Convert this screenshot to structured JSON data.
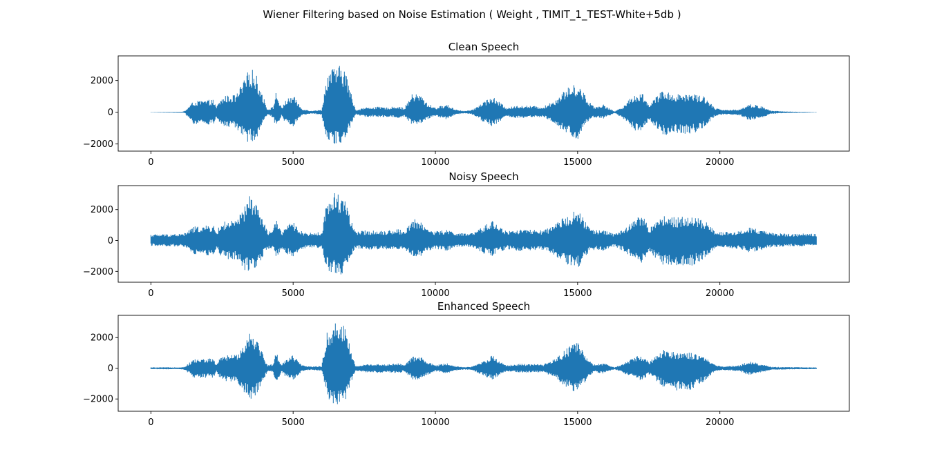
{
  "figure": {
    "suptitle": "Wiener Filtering based on Noise Estimation ( Weight , TIMIT_1_TEST-White+5db )"
  },
  "chart_data": [
    {
      "type": "line",
      "title": "Clean Speech",
      "xlabel": "",
      "ylabel": "",
      "xlim": [
        -1150,
        24550
      ],
      "ylim": [
        -2450,
        3550
      ],
      "xticks": [
        0,
        5000,
        10000,
        15000,
        20000
      ],
      "xtick_labels": [
        "0",
        "5000",
        "10000",
        "15000",
        "20000"
      ],
      "yticks": [
        -2000,
        0,
        2000
      ],
      "ytick_labels": [
        "−2000",
        "0",
        "2000"
      ],
      "grid": false,
      "color": "#1f77b4",
      "n_samples": 23400,
      "envelope": {
        "x": [
          0,
          1100,
          1200,
          1500,
          2200,
          2300,
          2400,
          2600,
          3000,
          3300,
          3500,
          3700,
          4100,
          4300,
          4400,
          4600,
          4700,
          5000,
          5300,
          5600,
          6000,
          6200,
          6500,
          6800,
          7100,
          7200,
          7500,
          8000,
          8300,
          8700,
          8900,
          9200,
          9500,
          9700,
          10000,
          10400,
          10700,
          11000,
          11300,
          11700,
          12000,
          12500,
          13000,
          13800,
          14200,
          14600,
          15000,
          15400,
          15600,
          15900,
          16300,
          16600,
          17000,
          17300,
          17500,
          18000,
          18500,
          19000,
          19500,
          19800,
          20100,
          20700,
          21000,
          21200,
          21500,
          21800,
          22300,
          22800,
          23400
        ],
        "max": [
          10,
          30,
          100,
          700,
          800,
          300,
          700,
          1050,
          1100,
          2100,
          2950,
          2400,
          200,
          350,
          1300,
          250,
          700,
          1100,
          250,
          100,
          150,
          2500,
          2950,
          2900,
          800,
          150,
          300,
          350,
          300,
          400,
          250,
          1200,
          1100,
          600,
          300,
          500,
          200,
          80,
          150,
          700,
          1000,
          300,
          450,
          350,
          800,
          1500,
          1850,
          700,
          350,
          500,
          50,
          400,
          1150,
          1200,
          500,
          1400,
          1150,
          1250,
          1000,
          300,
          150,
          200,
          500,
          500,
          350,
          100,
          50,
          30,
          10
        ],
        "min": [
          -10,
          -30,
          -80,
          -750,
          -800,
          -300,
          -700,
          -950,
          -1000,
          -1850,
          -1900,
          -1700,
          -150,
          -350,
          -1000,
          -200,
          -600,
          -900,
          -200,
          -100,
          -150,
          -1850,
          -2100,
          -1950,
          -500,
          -150,
          -300,
          -300,
          -300,
          -400,
          -250,
          -850,
          -750,
          -450,
          -250,
          -450,
          -150,
          -80,
          -150,
          -650,
          -900,
          -300,
          -400,
          -300,
          -800,
          -1400,
          -1750,
          -500,
          -350,
          -450,
          -50,
          -400,
          -1200,
          -1100,
          -500,
          -1450,
          -1350,
          -1400,
          -900,
          -300,
          -150,
          -200,
          -500,
          -500,
          -350,
          -100,
          -50,
          -30,
          -10
        ]
      }
    },
    {
      "type": "line",
      "title": "Noisy Speech",
      "xlabel": "",
      "ylabel": "",
      "xlim": [
        -1150,
        24550
      ],
      "ylim": [
        -2700,
        3550
      ],
      "xticks": [
        0,
        5000,
        10000,
        15000,
        20000
      ],
      "xtick_labels": [
        "0",
        "5000",
        "10000",
        "15000",
        "20000"
      ],
      "yticks": [
        -2000,
        0,
        2000
      ],
      "ytick_labels": [
        "−2000",
        "0",
        "2000"
      ],
      "grid": false,
      "color": "#1f77b4",
      "n_samples": 23400,
      "envelope": {
        "x": [
          0,
          1100,
          1200,
          1500,
          2200,
          2300,
          2400,
          2600,
          3000,
          3300,
          3500,
          3700,
          4100,
          4300,
          4400,
          4600,
          4700,
          5000,
          5300,
          5600,
          6000,
          6200,
          6500,
          6800,
          7100,
          7200,
          7500,
          8000,
          8300,
          8700,
          8900,
          9200,
          9500,
          9700,
          10000,
          10400,
          10700,
          11000,
          11300,
          11700,
          12000,
          12500,
          13000,
          13800,
          14200,
          14600,
          15000,
          15400,
          15600,
          15900,
          16300,
          16600,
          17000,
          17300,
          17500,
          18000,
          18500,
          19000,
          19500,
          19800,
          20100,
          20700,
          21000,
          21200,
          21500,
          21800,
          22300,
          22800,
          23400
        ],
        "max": [
          400,
          450,
          500,
          900,
          1000,
          550,
          900,
          1250,
          1300,
          2200,
          3100,
          2500,
          600,
          700,
          1400,
          550,
          900,
          1200,
          600,
          500,
          550,
          2700,
          3200,
          3050,
          1000,
          550,
          650,
          650,
          650,
          750,
          600,
          1400,
          1300,
          800,
          600,
          700,
          550,
          450,
          500,
          900,
          1350,
          600,
          750,
          650,
          1000,
          1700,
          2000,
          900,
          650,
          700,
          450,
          700,
          1400,
          1700,
          800,
          1600,
          1500,
          1600,
          1300,
          650,
          550,
          600,
          850,
          800,
          650,
          500,
          450,
          450,
          450
        ],
        "min": [
          -350,
          -400,
          -450,
          -900,
          -1000,
          -500,
          -900,
          -1200,
          -1250,
          -1950,
          -2000,
          -1850,
          -550,
          -650,
          -1150,
          -500,
          -800,
          -1100,
          -550,
          -450,
          -500,
          -2000,
          -2350,
          -2100,
          -800,
          -500,
          -600,
          -600,
          -600,
          -700,
          -550,
          -1050,
          -1000,
          -700,
          -550,
          -650,
          -500,
          -400,
          -450,
          -850,
          -1000,
          -550,
          -700,
          -600,
          -1000,
          -1550,
          -1800,
          -750,
          -600,
          -650,
          -400,
          -700,
          -1300,
          -1500,
          -750,
          -1600,
          -1700,
          -1650,
          -1150,
          -600,
          -500,
          -550,
          -750,
          -750,
          -600,
          -450,
          -400,
          -400,
          -400
        ]
      }
    },
    {
      "type": "line",
      "title": "Enhanced Speech",
      "xlabel": "",
      "ylabel": "",
      "xlim": [
        -1150,
        24550
      ],
      "ylim": [
        -2800,
        3450
      ],
      "xticks": [
        0,
        5000,
        10000,
        15000,
        20000
      ],
      "xtick_labels": [
        "0",
        "5000",
        "10000",
        "15000",
        "20000"
      ],
      "yticks": [
        -2000,
        0,
        2000
      ],
      "ytick_labels": [
        "−2000",
        "0",
        "2000"
      ],
      "grid": false,
      "color": "#1f77b4",
      "n_samples": 23400,
      "envelope": {
        "x": [
          0,
          1100,
          1200,
          1500,
          2200,
          2300,
          2400,
          2600,
          3000,
          3300,
          3500,
          3700,
          4100,
          4300,
          4400,
          4600,
          4700,
          5000,
          5300,
          5600,
          6000,
          6200,
          6500,
          6800,
          7100,
          7200,
          7500,
          8000,
          8300,
          8700,
          8900,
          9200,
          9500,
          9700,
          10000,
          10400,
          10700,
          11000,
          11300,
          11700,
          12000,
          12500,
          13000,
          13800,
          14200,
          14600,
          15000,
          15400,
          15600,
          15900,
          16300,
          16600,
          17000,
          17300,
          17500,
          18000,
          18500,
          19000,
          19500,
          19800,
          20100,
          20700,
          21000,
          21200,
          21500,
          21800,
          22300,
          22800,
          23400
        ],
        "max": [
          60,
          70,
          120,
          600,
          650,
          250,
          600,
          850,
          900,
          1700,
          2600,
          2100,
          200,
          300,
          1100,
          200,
          550,
          900,
          200,
          120,
          150,
          2400,
          3050,
          3000,
          700,
          150,
          250,
          300,
          250,
          350,
          200,
          800,
          750,
          450,
          200,
          350,
          150,
          80,
          120,
          500,
          850,
          200,
          300,
          250,
          600,
          1300,
          1700,
          500,
          250,
          350,
          60,
          300,
          750,
          900,
          400,
          1250,
          1100,
          1000,
          700,
          250,
          120,
          200,
          450,
          400,
          250,
          100,
          80,
          70,
          60
        ],
        "min": [
          -60,
          -70,
          -120,
          -600,
          -650,
          -250,
          -600,
          -850,
          -900,
          -1650,
          -2000,
          -1800,
          -200,
          -300,
          -1000,
          -200,
          -500,
          -850,
          -200,
          -120,
          -150,
          -1900,
          -2550,
          -2300,
          -650,
          -150,
          -250,
          -300,
          -250,
          -350,
          -200,
          -750,
          -700,
          -450,
          -200,
          -350,
          -150,
          -80,
          -120,
          -500,
          -750,
          -200,
          -300,
          -250,
          -650,
          -1300,
          -1700,
          -500,
          -250,
          -350,
          -60,
          -300,
          -700,
          -850,
          -400,
          -1200,
          -1450,
          -1450,
          -800,
          -250,
          -120,
          -200,
          -450,
          -400,
          -250,
          -100,
          -80,
          -70,
          -60
        ]
      }
    }
  ]
}
